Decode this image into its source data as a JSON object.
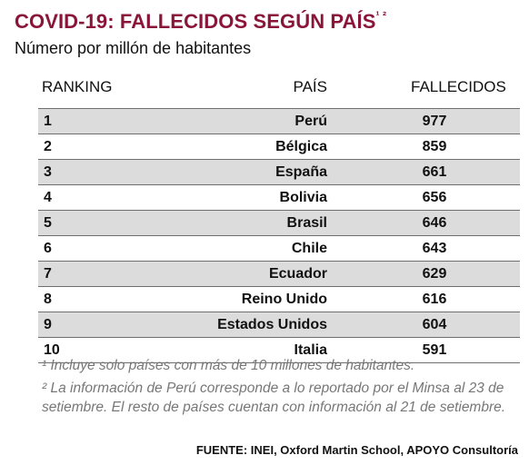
{
  "title": {
    "main": "COVID-19: FALLECIDOS SEGÚN PAÍS",
    "superscript": "¹ ²"
  },
  "subtitle": "Número por millón de habitantes",
  "headers": {
    "ranking": "RANKING",
    "pais": "PAÍS",
    "fallecidos": "FALLECIDOS"
  },
  "chart_data": {
    "type": "table",
    "title": "COVID-19: FALLECIDOS SEGÚN PAÍS¹ ²",
    "subtitle": "Número por millón de habitantes",
    "columns": [
      "RANKING",
      "PAÍS",
      "FALLECIDOS"
    ],
    "rows": [
      {
        "rank": "1",
        "country": "Perú",
        "value": 977
      },
      {
        "rank": "2",
        "country": "Bélgica",
        "value": 859
      },
      {
        "rank": "3",
        "country": "España",
        "value": 661
      },
      {
        "rank": "4",
        "country": "Bolivia",
        "value": 656
      },
      {
        "rank": "5",
        "country": "Brasil",
        "value": 646
      },
      {
        "rank": "6",
        "country": "Chile",
        "value": 643
      },
      {
        "rank": "7",
        "country": "Ecuador",
        "value": 629
      },
      {
        "rank": "8",
        "country": "Reino Unido",
        "value": 616
      },
      {
        "rank": "9",
        "country": "Estados Unidos",
        "value": 604
      },
      {
        "rank": "10",
        "country": "Italia",
        "value": 591
      }
    ]
  },
  "notes": {
    "note1": "¹ Incluye solo países con más de 10 millones de habitantes.",
    "note2": "² La información de Perú corresponde a lo reportado por el Minsa al 23 de setiembre. El resto de países cuentan con información al 21 de setiembre."
  },
  "source": "FUENTE: INEI, Oxford Martin School, APOYO Consultoría",
  "colors": {
    "title": "#8a1538",
    "shaded_row": "#dcdcdc",
    "rule": "#6f6f6f",
    "note_text": "#777777"
  }
}
